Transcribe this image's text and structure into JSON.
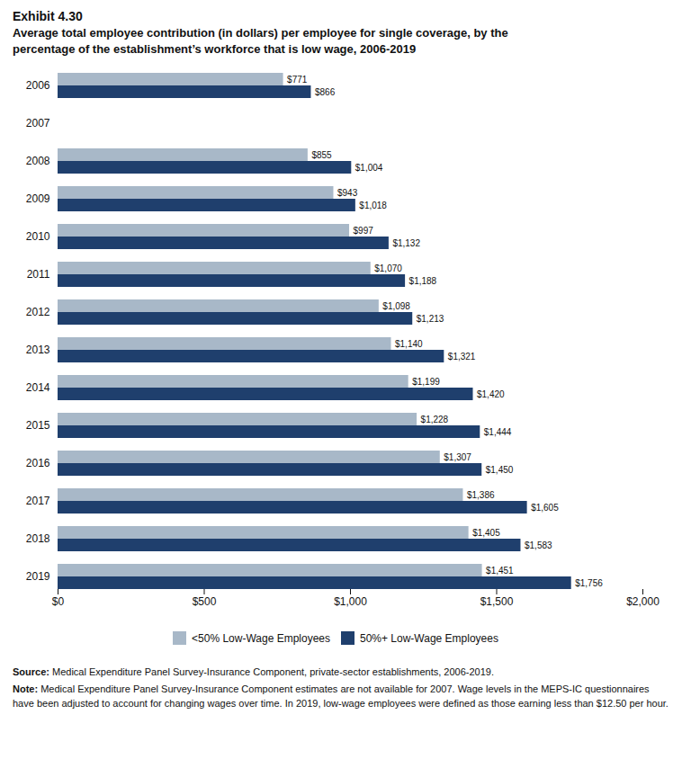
{
  "chart_data": {
    "type": "bar",
    "orientation": "horizontal",
    "title": "Exhibit 4.30",
    "subtitle": "Average total employee contribution (in dollars) per employee for single coverage, by the\npercentage of the establishment’s workforce that is low wage, 2006-2019",
    "categories": [
      "2006",
      "2007",
      "2008",
      "2009",
      "2010",
      "2011",
      "2012",
      "2013",
      "2014",
      "2015",
      "2016",
      "2017",
      "2018",
      "2019"
    ],
    "series": [
      {
        "name": "<50% Low-Wage Employees",
        "color": "#a8b8c8",
        "values": [
          771,
          null,
          855,
          943,
          997,
          1070,
          1098,
          1140,
          1199,
          1228,
          1307,
          1386,
          1405,
          1451
        ],
        "value_labels": [
          "$771",
          null,
          "$855",
          "$943",
          "$997",
          "$1,070",
          "$1,098",
          "$1,140",
          "$1,199",
          "$1,228",
          "$1,307",
          "$1,386",
          "$1,405",
          "$1,451"
        ]
      },
      {
        "name": "50%+ Low-Wage Employees",
        "color": "#1f3f6d",
        "values": [
          866,
          null,
          1004,
          1018,
          1132,
          1188,
          1213,
          1321,
          1420,
          1444,
          1450,
          1605,
          1583,
          1756
        ],
        "value_labels": [
          "$866",
          null,
          "$1,004",
          "$1,018",
          "$1,132",
          "$1,188",
          "$1,213",
          "$1,321",
          "$1,420",
          "$1,444",
          "$1,450",
          "$1,605",
          "$1,583",
          "$1,756"
        ]
      }
    ],
    "xlim": [
      0,
      2000
    ],
    "xticks": [
      {
        "value": 0,
        "label": "$0"
      },
      {
        "value": 500,
        "label": "$500"
      },
      {
        "value": 1000,
        "label": "$1,000"
      },
      {
        "value": 1500,
        "label": "$1,500"
      },
      {
        "value": 2000,
        "label": "$2,000"
      }
    ],
    "grid": false,
    "legend": "bottom",
    "data_labels": true,
    "annotations": [
      {
        "label": "Source:",
        "text": "Medical Expenditure Panel Survey-Insurance Component, private-sector establishments, 2006-2019."
      },
      {
        "label": "Note:",
        "text": "Medical Expenditure Panel Survey-Insurance Component estimates are not available for 2007. Wage levels in the MEPS-IC questionnaires have been adjusted to account for changing wages over time. In 2019, low-wage employees were defined as those earning less than $12.50 per hour."
      }
    ]
  }
}
